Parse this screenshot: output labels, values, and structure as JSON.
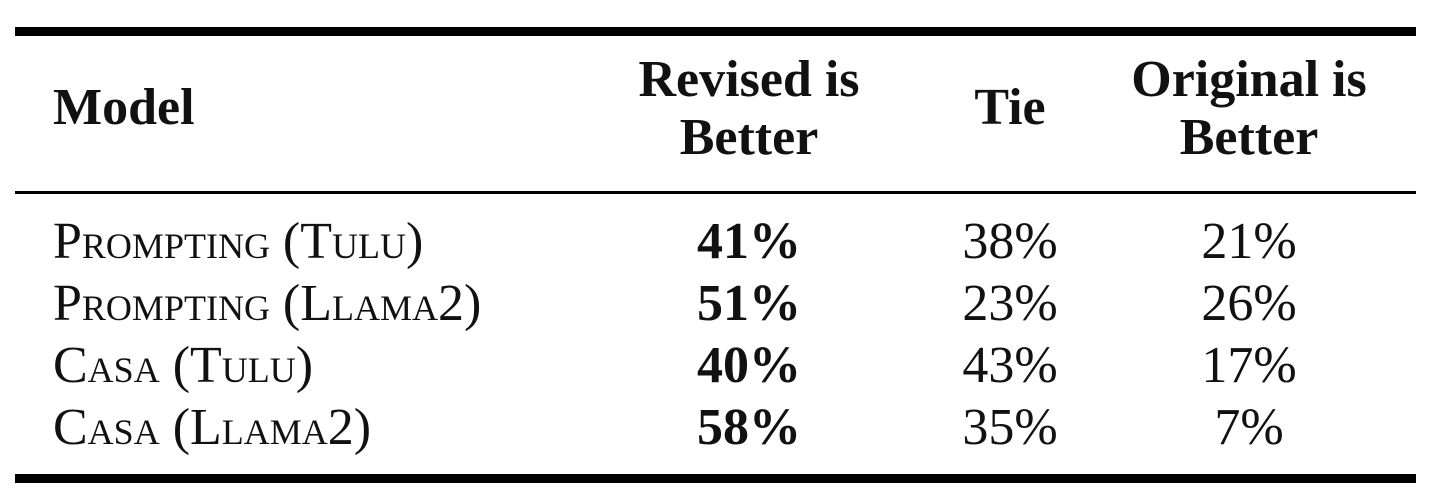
{
  "chart_data": {
    "type": "table",
    "columns": [
      "Model",
      "Revised is Better",
      "Tie",
      "Original is Better"
    ],
    "header": {
      "model": "Model",
      "revised_line1": "Revised is",
      "revised_line2": "Better",
      "tie": "Tie",
      "original_line1": "Original is",
      "original_line2": "Better"
    },
    "rows": [
      {
        "model": "Prompting (Tulu)",
        "revised": "41%",
        "tie": "38%",
        "original": "21%"
      },
      {
        "model": "Prompting (Llama2)",
        "revised": "51%",
        "tie": "23%",
        "original": "26%"
      },
      {
        "model": "Casa (Tulu)",
        "revised": "40%",
        "tie": "43%",
        "original": "17%"
      },
      {
        "model": "Casa (Llama2)",
        "revised": "58%",
        "tie": "35%",
        "original": "7%"
      }
    ]
  }
}
